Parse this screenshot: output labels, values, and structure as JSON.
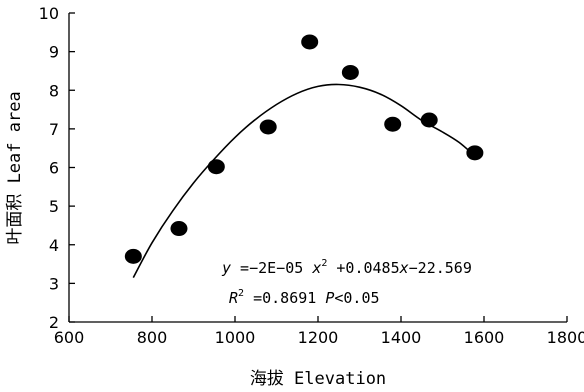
{
  "chart_data": {
    "type": "scatter",
    "xlabel": "海拔 Elevation",
    "ylabel": "叶面积 Leaf area",
    "xlim": [
      600,
      1800
    ],
    "ylim": [
      2,
      10
    ],
    "x_ticks": [
      "600",
      "800",
      "1000",
      "1200",
      "1400",
      "1600",
      "1800"
    ],
    "y_ticks": [
      "2",
      "3",
      "4",
      "5",
      "6",
      "7",
      "8",
      "9",
      "10"
    ],
    "grid": false,
    "marker_color": "#000000",
    "points": [
      {
        "x": 755,
        "y": 3.7
      },
      {
        "x": 865,
        "y": 4.42
      },
      {
        "x": 955,
        "y": 6.02
      },
      {
        "x": 1080,
        "y": 7.05
      },
      {
        "x": 1180,
        "y": 9.25
      },
      {
        "x": 1278,
        "y": 8.46
      },
      {
        "x": 1380,
        "y": 7.12
      },
      {
        "x": 1468,
        "y": 7.23
      },
      {
        "x": 1578,
        "y": 6.38
      }
    ],
    "fit_curve": [
      {
        "x": 755,
        "y": 3.15
      },
      {
        "x": 800,
        "y": 4.05
      },
      {
        "x": 850,
        "y": 4.88
      },
      {
        "x": 900,
        "y": 5.6
      },
      {
        "x": 950,
        "y": 6.22
      },
      {
        "x": 1000,
        "y": 6.78
      },
      {
        "x": 1050,
        "y": 7.25
      },
      {
        "x": 1100,
        "y": 7.63
      },
      {
        "x": 1150,
        "y": 7.92
      },
      {
        "x": 1200,
        "y": 8.1
      },
      {
        "x": 1250,
        "y": 8.15
      },
      {
        "x": 1300,
        "y": 8.08
      },
      {
        "x": 1350,
        "y": 7.9
      },
      {
        "x": 1400,
        "y": 7.6
      },
      {
        "x": 1450,
        "y": 7.22
      },
      {
        "x": 1500,
        "y": 6.92
      },
      {
        "x": 1540,
        "y": 6.65
      },
      {
        "x": 1578,
        "y": 6.3
      }
    ],
    "annotations": {
      "equation": {
        "y": "y",
        "eq1": " =−2E−05 ",
        "x1": "x",
        "exp": "2",
        "eq2": " +0.0485",
        "x2": "x",
        "eq3": "−22.569"
      },
      "r2": {
        "r": "R",
        "exp": "2",
        "value": " =0.8691 ",
        "p": "P",
        "p_text": "<0.05"
      }
    }
  }
}
